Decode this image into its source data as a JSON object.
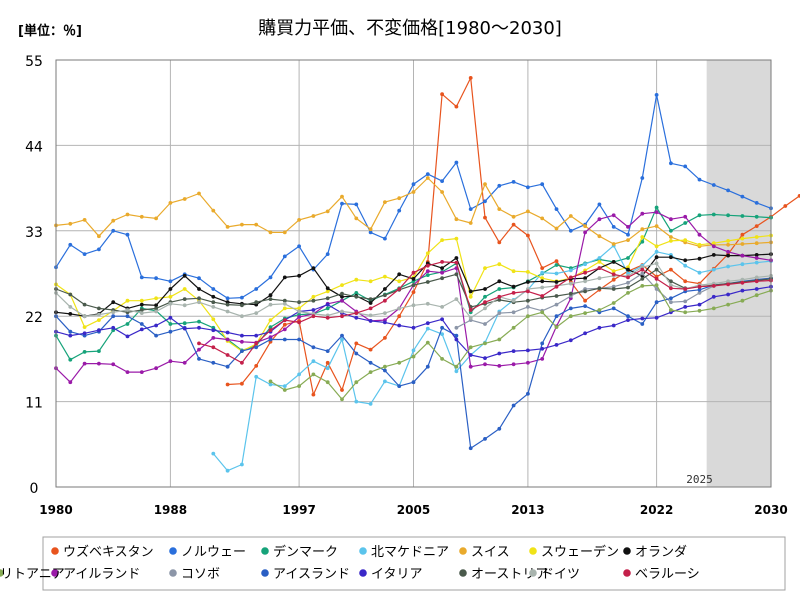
{
  "chart_data": {
    "type": "line",
    "title": "購買力平価、不変価格[1980～2030]",
    "unit_label": "[単位：％]",
    "forecast_label": "2025",
    "x_ticks": [
      1980,
      1988,
      1997,
      2005,
      2013,
      2022,
      2030
    ],
    "y_ticks": [
      0,
      11,
      22,
      33,
      44,
      55
    ],
    "xlim": [
      1980,
      2030
    ],
    "ylim": [
      0,
      55
    ],
    "forecast_start": 2025,
    "grid": true,
    "legend_position": "bottom",
    "series": [
      {
        "name": "ウズベキスタン",
        "color": "#e8541e",
        "start": 1992,
        "values": [
          13.2,
          13.3,
          15.6,
          18.7,
          20.9,
          21.4,
          11.9,
          16.0,
          12.5,
          18.5,
          17.7,
          19.2,
          22.0,
          25.1,
          29.0,
          50.6,
          49.0,
          52.7,
          34.7,
          31.5,
          33.8,
          32.4,
          28.2,
          29.1,
          26.4,
          24.0,
          25.4,
          26.7,
          27.8,
          28.6,
          27.1,
          28.0,
          26.5,
          26.2,
          28.1,
          30.0,
          32.5,
          33.6,
          34.8,
          36.2,
          37.5
        ]
      },
      {
        "name": "ノルウェー",
        "color": "#2a6fdc",
        "start": 1980,
        "values": [
          28.3,
          31.2,
          30.0,
          30.6,
          33.0,
          32.5,
          27.0,
          26.9,
          26.5,
          27.4,
          26.9,
          25.5,
          24.3,
          24.4,
          25.5,
          27.0,
          29.7,
          31.0,
          28.0,
          30.0,
          36.5,
          36.4,
          32.8,
          32.0,
          35.6,
          39.0,
          40.3,
          39.4,
          41.8,
          35.8,
          36.8,
          38.8,
          39.3,
          38.6,
          39.0,
          35.8,
          33.0,
          33.8,
          36.4,
          33.5,
          32.5,
          39.8,
          50.5,
          41.7,
          41.3,
          39.6,
          38.9,
          38.2,
          37.4,
          36.6,
          35.9
        ]
      },
      {
        "name": "デンマーク",
        "color": "#16a37a",
        "start": 1980,
        "values": [
          19.5,
          16.4,
          17.4,
          17.5,
          20.2,
          21.0,
          23.0,
          22.7,
          21.0,
          21.1,
          21.3,
          20.5,
          19.0,
          17.6,
          18.2,
          20.6,
          21.7,
          22.2,
          22.3,
          23.0,
          24.0,
          25.0,
          24.0,
          24.8,
          25.6,
          26.5,
          27.3,
          27.7,
          28.8,
          22.5,
          24.5,
          25.5,
          25.7,
          26.5,
          27.5,
          28.6,
          28.2,
          28.8,
          29.3,
          29.0,
          29.5,
          31.6,
          36.0,
          33.0,
          34.0,
          35.0,
          35.1,
          35.0,
          34.9,
          34.8,
          34.7
        ]
      },
      {
        "name": "北マケドニア",
        "color": "#5bc4ec",
        "start": 1991,
        "values": [
          4.3,
          2.1,
          2.9,
          14.2,
          13.2,
          13.0,
          14.5,
          16.2,
          15.3,
          19.0,
          11.0,
          10.7,
          13.6,
          13.0,
          17.6,
          20.4,
          19.7,
          14.9,
          17.0,
          18.6,
          22.6,
          24.1,
          25.4,
          27.6,
          27.5,
          27.9,
          28.7,
          29.5,
          31.1,
          27.5,
          28.5,
          30.3,
          29.9,
          28.5,
          27.6,
          28.0,
          28.4,
          28.7,
          28.9,
          29.1
        ]
      },
      {
        "name": "スイス",
        "color": "#e9aa2c",
        "start": 1980,
        "values": [
          33.7,
          33.9,
          34.4,
          32.3,
          34.3,
          35.1,
          34.8,
          34.6,
          36.6,
          37.1,
          37.8,
          35.6,
          33.5,
          33.8,
          33.8,
          32.8,
          32.8,
          34.4,
          34.9,
          35.5,
          37.4,
          34.6,
          33.2,
          36.7,
          37.2,
          38.0,
          39.8,
          38.0,
          34.5,
          34.0,
          39.0,
          35.8,
          34.8,
          35.5,
          34.6,
          33.3,
          34.9,
          33.6,
          32.3,
          31.3,
          31.8,
          33.2,
          33.6,
          32.2,
          31.5,
          31.0,
          31.2,
          31.2,
          31.3,
          31.4,
          31.5
        ]
      },
      {
        "name": "スウェーデン",
        "color": "#f0e317",
        "start": 1980,
        "values": [
          26.1,
          24.8,
          20.6,
          21.5,
          22.7,
          24.0,
          24.0,
          24.3,
          24.5,
          25.5,
          24.0,
          21.6,
          18.8,
          17.5,
          18.4,
          21.5,
          23.0,
          23.0,
          24.5,
          25.2,
          26.0,
          26.7,
          26.5,
          27.1,
          26.5,
          27.0,
          30.1,
          31.8,
          32.0,
          24.5,
          28.2,
          28.7,
          27.8,
          27.7,
          26.9,
          26.5,
          26.9,
          27.9,
          29.0,
          27.8,
          28.3,
          32.2,
          31.0,
          31.7,
          31.8,
          31.2,
          31.4,
          31.7,
          32.0,
          32.2,
          32.4
        ]
      },
      {
        "name": "オランダ",
        "color": "#111111",
        "start": 1980,
        "values": [
          22.5,
          22.3,
          22.0,
          22.3,
          23.8,
          23.0,
          23.5,
          23.4,
          25.5,
          27.2,
          25.5,
          24.5,
          23.8,
          23.6,
          23.5,
          24.7,
          27.0,
          27.2,
          28.2,
          25.6,
          24.5,
          24.6,
          23.7,
          25.5,
          27.4,
          26.8,
          28.8,
          28.2,
          29.5,
          25.2,
          25.5,
          26.5,
          25.8,
          26.4,
          26.5,
          26.4,
          26.8,
          26.9,
          28.2,
          29.0,
          28.0,
          27.2,
          29.6,
          29.6,
          29.2,
          29.4,
          29.9,
          29.8,
          29.8,
          29.9,
          30.0
        ]
      },
      {
        "name": "アイルランド",
        "color": "#9a1aa8",
        "start": 1980,
        "values": [
          15.3,
          13.5,
          15.9,
          15.9,
          15.8,
          14.8,
          14.8,
          15.3,
          16.2,
          16.0,
          17.7,
          19.2,
          19.0,
          18.7,
          18.6,
          19.3,
          20.3,
          21.9,
          22.3,
          23.6,
          24.0,
          22.6,
          21.4,
          21.5,
          23.0,
          26.0,
          27.8,
          27.6,
          28.2,
          15.5,
          15.8,
          15.6,
          15.8,
          16.0,
          16.5,
          20.7,
          24.3,
          32.8,
          34.5,
          35.0,
          33.5,
          35.2,
          35.4,
          34.5,
          34.8,
          32.5,
          31.0,
          30.3,
          29.8,
          29.5,
          29.2
        ]
      },
      {
        "name": "コソボ",
        "color": "#8c96a8",
        "start": 2008,
        "values": [
          20.5,
          21.5,
          21.0,
          22.4,
          22.5,
          23.2,
          22.7,
          23.5,
          24.6,
          25.5,
          25.6,
          25.8,
          26.3,
          27.5,
          25.5,
          23.8,
          23.9,
          25.0,
          25.9,
          26.2,
          26.4,
          26.7,
          26.9
        ]
      },
      {
        "name": "アイスランド",
        "color": "#2a5fc4",
        "start": 1980,
        "values": [
          22.0,
          20.0,
          19.5,
          20.0,
          22.0,
          22.0,
          21.0,
          19.5,
          20.0,
          20.5,
          16.5,
          16.0,
          15.5,
          17.5,
          18.0,
          19.0,
          19.0,
          19.0,
          18.0,
          17.5,
          19.5,
          17.2,
          16.0,
          15.0,
          13.0,
          13.5,
          15.5,
          20.5,
          19.5,
          5.0,
          6.2,
          7.5,
          10.5,
          12.0,
          18.5,
          22.0,
          23.0,
          23.3,
          22.5,
          23.0,
          22.0,
          21.0,
          23.8,
          24.3,
          25.2,
          25.4,
          26.0,
          26.2,
          26.5,
          26.7,
          26.9
        ]
      },
      {
        "name": "イタリア",
        "color": "#3a28c8",
        "start": 1980,
        "values": [
          20.0,
          19.5,
          19.8,
          20.2,
          20.5,
          19.4,
          20.3,
          20.8,
          21.8,
          20.4,
          20.5,
          20.2,
          19.9,
          19.5,
          19.5,
          20.0,
          21.5,
          22.6,
          22.8,
          23.5,
          22.4,
          21.8,
          21.4,
          21.2,
          20.8,
          20.5,
          21.1,
          21.6,
          19.0,
          17.0,
          16.6,
          17.2,
          17.5,
          17.6,
          17.8,
          18.3,
          18.9,
          19.8,
          20.5,
          20.8,
          21.5,
          21.7,
          21.8,
          22.5,
          23.2,
          23.5,
          24.5,
          24.8,
          25.3,
          25.5,
          25.8
        ]
      },
      {
        "name": "オーストリア",
        "color": "#4a5a4c",
        "start": 1980,
        "values": [
          25.5,
          24.8,
          23.5,
          23.0,
          22.8,
          22.5,
          22.8,
          23.0,
          23.8,
          24.2,
          24.3,
          23.8,
          23.5,
          23.4,
          23.8,
          24.2,
          24.0,
          23.8,
          24.0,
          24.3,
          24.9,
          24.5,
          24.2,
          24.7,
          25.4,
          26.0,
          26.4,
          26.9,
          27.4,
          23.2,
          23.6,
          24.1,
          23.8,
          24.0,
          24.4,
          24.6,
          24.9,
          25.2,
          25.6,
          25.5,
          25.7,
          26.8,
          28.0,
          26.5,
          25.6,
          25.8,
          26.0,
          26.2,
          26.4,
          26.6,
          26.8
        ]
      },
      {
        "name": "ドイツ",
        "color": "#a8b4ae",
        "start": 1980,
        "values": [
          25.0,
          23.2,
          22.0,
          22.2,
          22.5,
          22.8,
          22.4,
          22.6,
          23.6,
          23.4,
          23.8,
          23.2,
          22.6,
          22.0,
          22.4,
          23.5,
          23.6,
          22.6,
          22.3,
          22.1,
          22.6,
          22.4,
          22.1,
          22.4,
          23.0,
          23.4,
          23.6,
          23.2,
          24.2,
          21.8,
          23.0,
          24.5,
          24.0,
          25.5,
          25.7,
          25.9,
          26.2,
          26.5,
          26.9,
          27.2,
          27.2,
          28.3,
          28.8,
          26.0,
          25.5,
          26.0,
          26.2,
          26.5,
          26.7,
          27.0,
          27.2
        ]
      },
      {
        "name": "ベラルーシ",
        "color": "#c4204a",
        "start": 1990,
        "values": [
          18.5,
          18.0,
          17.0,
          16.0,
          18.5,
          20.2,
          21.5,
          21.2,
          22.0,
          21.8,
          22.0,
          22.4,
          23.0,
          24.0,
          25.5,
          27.6,
          28.5,
          29.0,
          28.9,
          22.8,
          23.8,
          24.5,
          25.0,
          25.2,
          24.6,
          25.8,
          27.0,
          27.6,
          28.2,
          27.4,
          27.0,
          28.0,
          26.8,
          25.6,
          25.5,
          25.8,
          25.9,
          26.1,
          26.3,
          26.5,
          26.6
        ]
      },
      {
        "name": "リトアニア",
        "color": "#87ab54",
        "start": 1995,
        "values": [
          13.6,
          12.5,
          13.0,
          14.5,
          13.5,
          11.3,
          13.5,
          14.8,
          15.5,
          16.0,
          16.8,
          18.6,
          16.5,
          15.5,
          18.0,
          18.5,
          19.0,
          20.5,
          22.0,
          22.5,
          20.6,
          22.0,
          22.4,
          22.8,
          23.7,
          25.0,
          25.9,
          26.0,
          22.8,
          22.5,
          22.7,
          23.0,
          23.5,
          24.0,
          24.7,
          25.3
        ]
      }
    ]
  }
}
